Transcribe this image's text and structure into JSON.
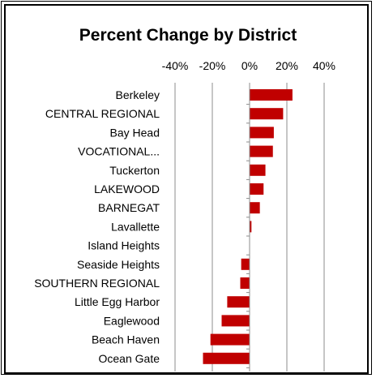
{
  "chart_data": {
    "type": "bar",
    "orientation": "horizontal",
    "title": "Percent Change by District",
    "xlabel": "",
    "ylabel": "",
    "xlim": [
      -40,
      40
    ],
    "xticks": [
      -40,
      -20,
      0,
      20,
      40
    ],
    "xtick_labels": [
      "-40%",
      "-20%",
      "0%",
      "20%",
      "40%"
    ],
    "grid": true,
    "bar_color": "#c00000",
    "categories": [
      "Berkeley",
      "CENTRAL REGIONAL",
      "Bay Head",
      "VOCATIONAL...",
      "Tuckerton",
      "LAKEWOOD",
      "BARNEGAT",
      "Lavallette",
      "Island Heights",
      "Seaside Heights",
      "SOUTHERN REGIONAL",
      "Little Egg Harbor",
      "Eaglewood",
      "Beach Haven",
      "Ocean Gate"
    ],
    "values": [
      23,
      18,
      13,
      12.5,
      8.5,
      7.5,
      5.5,
      1,
      0,
      -4.5,
      -5,
      -12,
      -15,
      -21,
      -25
    ]
  }
}
